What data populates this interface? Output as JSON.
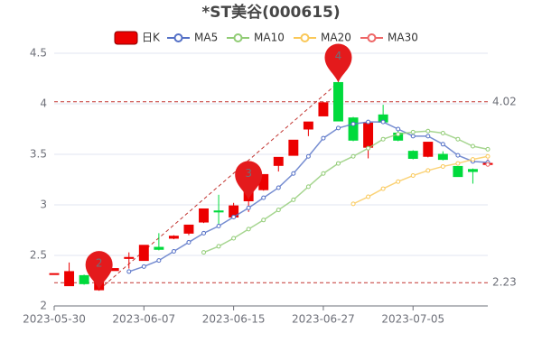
{
  "chart_data": {
    "type": "candlestick",
    "title": "*ST美谷(000615)",
    "categories": [
      "2023-05-30",
      null,
      null,
      null,
      null,
      null,
      "2023-06-07",
      null,
      null,
      null,
      null,
      null,
      "2023-06-15",
      null,
      null,
      null,
      null,
      null,
      "2023-06-27",
      null,
      null,
      null,
      null,
      null,
      "2023-07-05",
      null,
      null,
      null,
      null,
      null
    ],
    "candles": {
      "name": "日K",
      "up_color": "#ec0000",
      "down_color": "#00da3c",
      "open": [
        2.32,
        2.2,
        2.3,
        2.16,
        2.35,
        2.47,
        2.45,
        2.58,
        2.67,
        2.72,
        2.83,
        2.94,
        2.88,
        3.04,
        3.15,
        3.39,
        3.49,
        3.75,
        3.88,
        4.21,
        3.86,
        3.57,
        3.89,
        3.71,
        3.53,
        3.48,
        3.5,
        3.38,
        3.35,
        3.4
      ],
      "close": [
        2.32,
        2.34,
        2.22,
        2.33,
        2.37,
        2.48,
        2.6,
        2.56,
        2.69,
        2.8,
        2.96,
        2.93,
        2.99,
        3.14,
        3.3,
        3.47,
        3.64,
        3.82,
        4.01,
        3.83,
        3.64,
        3.81,
        3.82,
        3.64,
        3.46,
        3.62,
        3.45,
        3.28,
        3.33,
        3.41
      ],
      "high": [
        2.32,
        2.43,
        2.31,
        2.35,
        2.37,
        2.53,
        2.6,
        2.72,
        2.7,
        2.8,
        2.96,
        3.1,
        3.02,
        3.14,
        3.3,
        3.47,
        3.64,
        3.82,
        4.02,
        4.22,
        3.87,
        3.82,
        3.99,
        3.75,
        3.54,
        3.62,
        3.53,
        3.38,
        3.36,
        3.45
      ],
      "low": [
        2.32,
        2.2,
        2.21,
        2.15,
        2.35,
        2.37,
        2.45,
        2.55,
        2.66,
        2.7,
        2.82,
        2.81,
        2.86,
        2.93,
        3.14,
        3.33,
        3.49,
        3.68,
        3.88,
        3.83,
        3.63,
        3.46,
        3.8,
        3.63,
        3.45,
        3.47,
        3.44,
        3.28,
        3.21,
        3.38
      ]
    },
    "series": [
      {
        "name": "MA5",
        "color": "#5470c6",
        "values": [
          null,
          null,
          null,
          null,
          null,
          2.34,
          2.39,
          2.45,
          2.54,
          2.63,
          2.72,
          2.79,
          2.88,
          2.97,
          3.07,
          3.17,
          3.31,
          3.48,
          3.66,
          3.76,
          3.8,
          3.82,
          3.82,
          3.75,
          3.68,
          3.68,
          3.6,
          3.49,
          3.43,
          3.42
        ]
      },
      {
        "name": "MA10",
        "color": "#91cc75",
        "values": [
          null,
          null,
          null,
          null,
          null,
          null,
          null,
          null,
          null,
          null,
          2.53,
          2.59,
          2.67,
          2.76,
          2.85,
          2.95,
          3.05,
          3.18,
          3.31,
          3.41,
          3.48,
          3.56,
          3.65,
          3.7,
          3.72,
          3.73,
          3.71,
          3.65,
          3.58,
          3.55
        ]
      },
      {
        "name": "MA20",
        "color": "#fac858",
        "values": [
          null,
          null,
          null,
          null,
          null,
          null,
          null,
          null,
          null,
          null,
          null,
          null,
          null,
          null,
          null,
          null,
          null,
          null,
          null,
          null,
          3.01,
          3.08,
          3.16,
          3.23,
          3.29,
          3.34,
          3.38,
          3.41,
          3.45,
          3.48
        ]
      },
      {
        "name": "MA30",
        "color": "#ee6666",
        "values": [
          null,
          null,
          null,
          null,
          null,
          null,
          null,
          null,
          null,
          null,
          null,
          null,
          null,
          null,
          null,
          null,
          null,
          null,
          null,
          null,
          null,
          null,
          null,
          null,
          null,
          null,
          null,
          null,
          null,
          3.4
        ]
      }
    ],
    "ylim": [
      2,
      4.5
    ],
    "yticks": [
      2,
      2.5,
      3,
      3.5,
      4,
      4.5
    ],
    "grid": true,
    "mark_lines": [
      4.02,
      2.23
    ],
    "markers": [
      {
        "label": "2",
        "index": 3,
        "value": 2.16
      },
      {
        "label": "3",
        "index": 13,
        "value": 3.05
      },
      {
        "label": "4",
        "index": 19,
        "value": 4.21
      }
    ],
    "legend_position": "top"
  }
}
